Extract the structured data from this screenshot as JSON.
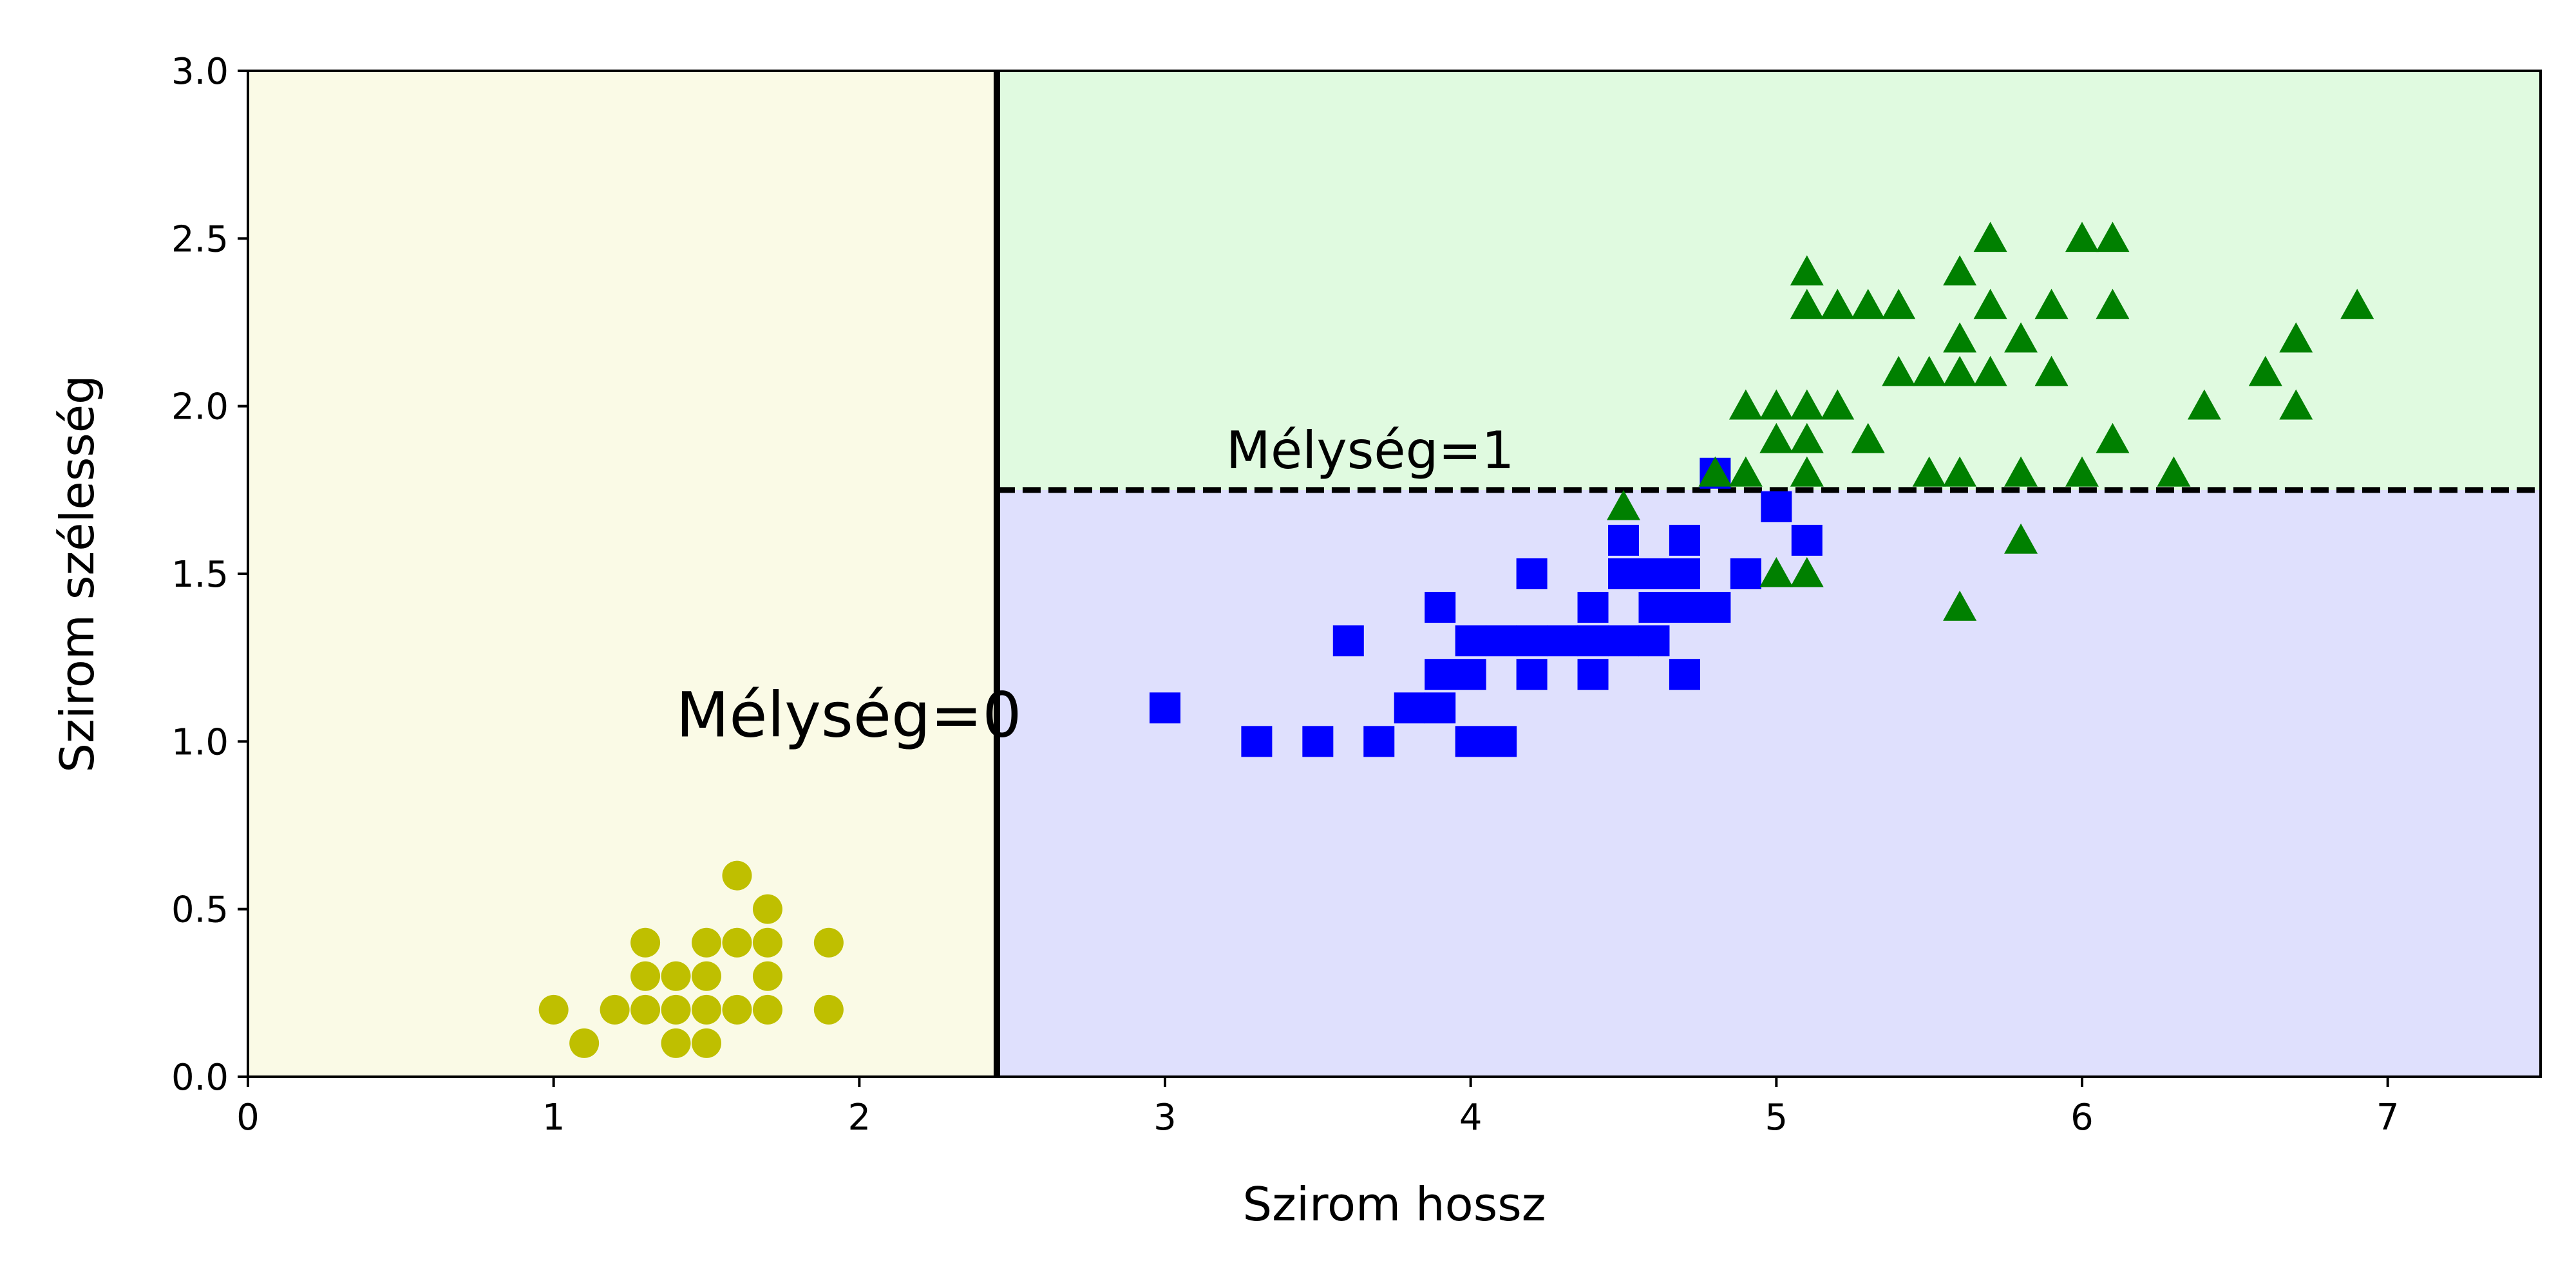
{
  "chart_data": {
    "type": "scatter",
    "xlabel": "Szirom hossz",
    "ylabel": "Szirom szélesség",
    "xlim": [
      0,
      7.5
    ],
    "ylim": [
      0,
      3
    ],
    "xticks": [
      "0",
      "1",
      "2",
      "3",
      "4",
      "5",
      "6",
      "7"
    ],
    "yticks": [
      "0.0",
      "0.5",
      "1.0",
      "1.5",
      "2.0",
      "2.5",
      "3.0"
    ],
    "grid": false,
    "regions": [
      {
        "x_range": [
          0,
          2.45
        ],
        "y_range": [
          0,
          3
        ],
        "color": "#fafae6"
      },
      {
        "x_range": [
          2.45,
          7.5
        ],
        "y_range": [
          1.75,
          3
        ],
        "color": "#e0fae0"
      },
      {
        "x_range": [
          2.45,
          7.5
        ],
        "y_range": [
          0,
          1.75
        ],
        "color": "#dfe0fd"
      }
    ],
    "boundaries": [
      {
        "orientation": "vertical",
        "value": 2.45,
        "style": "solid",
        "color": "#000000"
      },
      {
        "orientation": "horizontal",
        "value": 1.75,
        "x_from": 2.45,
        "x_to": 7.5,
        "style": "dashed",
        "color": "#000000"
      }
    ],
    "annotations": [
      {
        "text": "Mélység=0",
        "x": 1.4,
        "y": 1.0,
        "size": "large"
      },
      {
        "text": "Mélység=1",
        "x": 3.2,
        "y": 1.8,
        "size": "medium"
      }
    ],
    "series": [
      {
        "marker": "circle",
        "color": "#bfbf00",
        "points": [
          [
            1.0,
            0.2
          ],
          [
            1.1,
            0.1
          ],
          [
            1.2,
            0.2
          ],
          [
            1.3,
            0.2
          ],
          [
            1.3,
            0.3
          ],
          [
            1.3,
            0.4
          ],
          [
            1.4,
            0.1
          ],
          [
            1.4,
            0.2
          ],
          [
            1.4,
            0.3
          ],
          [
            1.5,
            0.1
          ],
          [
            1.5,
            0.2
          ],
          [
            1.5,
            0.3
          ],
          [
            1.5,
            0.4
          ],
          [
            1.6,
            0.2
          ],
          [
            1.6,
            0.4
          ],
          [
            1.6,
            0.6
          ],
          [
            1.7,
            0.2
          ],
          [
            1.7,
            0.3
          ],
          [
            1.7,
            0.4
          ],
          [
            1.7,
            0.5
          ],
          [
            1.9,
            0.2
          ],
          [
            1.9,
            0.4
          ]
        ]
      },
      {
        "marker": "square",
        "color": "#0000ff",
        "points": [
          [
            3.0,
            1.1
          ],
          [
            3.3,
            1.0
          ],
          [
            3.5,
            1.0
          ],
          [
            3.6,
            1.3
          ],
          [
            3.7,
            1.0
          ],
          [
            3.8,
            1.1
          ],
          [
            3.9,
            1.1
          ],
          [
            3.9,
            1.2
          ],
          [
            3.9,
            1.4
          ],
          [
            4.0,
            1.0
          ],
          [
            4.0,
            1.2
          ],
          [
            4.0,
            1.3
          ],
          [
            4.1,
            1.0
          ],
          [
            4.1,
            1.3
          ],
          [
            4.2,
            1.2
          ],
          [
            4.2,
            1.3
          ],
          [
            4.2,
            1.5
          ],
          [
            4.3,
            1.3
          ],
          [
            4.4,
            1.2
          ],
          [
            4.4,
            1.3
          ],
          [
            4.4,
            1.4
          ],
          [
            4.5,
            1.3
          ],
          [
            4.5,
            1.5
          ],
          [
            4.5,
            1.6
          ],
          [
            4.6,
            1.3
          ],
          [
            4.6,
            1.4
          ],
          [
            4.6,
            1.5
          ],
          [
            4.7,
            1.2
          ],
          [
            4.7,
            1.4
          ],
          [
            4.7,
            1.5
          ],
          [
            4.7,
            1.6
          ],
          [
            4.8,
            1.4
          ],
          [
            4.8,
            1.8
          ],
          [
            4.9,
            1.5
          ],
          [
            5.0,
            1.7
          ],
          [
            5.1,
            1.6
          ]
        ]
      },
      {
        "marker": "triangle",
        "color": "#008000",
        "points": [
          [
            4.5,
            1.7
          ],
          [
            4.8,
            1.8
          ],
          [
            4.9,
            1.8
          ],
          [
            4.9,
            2.0
          ],
          [
            5.0,
            1.5
          ],
          [
            5.0,
            1.9
          ],
          [
            5.0,
            2.0
          ],
          [
            5.1,
            1.5
          ],
          [
            5.1,
            1.8
          ],
          [
            5.1,
            1.9
          ],
          [
            5.1,
            2.0
          ],
          [
            5.1,
            2.3
          ],
          [
            5.1,
            2.4
          ],
          [
            5.2,
            2.0
          ],
          [
            5.2,
            2.3
          ],
          [
            5.3,
            1.9
          ],
          [
            5.3,
            2.3
          ],
          [
            5.4,
            2.1
          ],
          [
            5.4,
            2.3
          ],
          [
            5.5,
            1.8
          ],
          [
            5.5,
            2.1
          ],
          [
            5.6,
            1.4
          ],
          [
            5.6,
            1.8
          ],
          [
            5.6,
            2.1
          ],
          [
            5.6,
            2.2
          ],
          [
            5.6,
            2.4
          ],
          [
            5.7,
            2.1
          ],
          [
            5.7,
            2.3
          ],
          [
            5.7,
            2.5
          ],
          [
            5.8,
            1.6
          ],
          [
            5.8,
            1.8
          ],
          [
            5.8,
            2.2
          ],
          [
            5.9,
            2.1
          ],
          [
            5.9,
            2.3
          ],
          [
            6.0,
            1.8
          ],
          [
            6.0,
            2.5
          ],
          [
            6.1,
            1.9
          ],
          [
            6.1,
            2.3
          ],
          [
            6.1,
            2.5
          ],
          [
            6.3,
            1.8
          ],
          [
            6.4,
            2.0
          ],
          [
            6.6,
            2.1
          ],
          [
            6.7,
            2.0
          ],
          [
            6.7,
            2.2
          ],
          [
            6.9,
            2.3
          ]
        ]
      }
    ]
  }
}
